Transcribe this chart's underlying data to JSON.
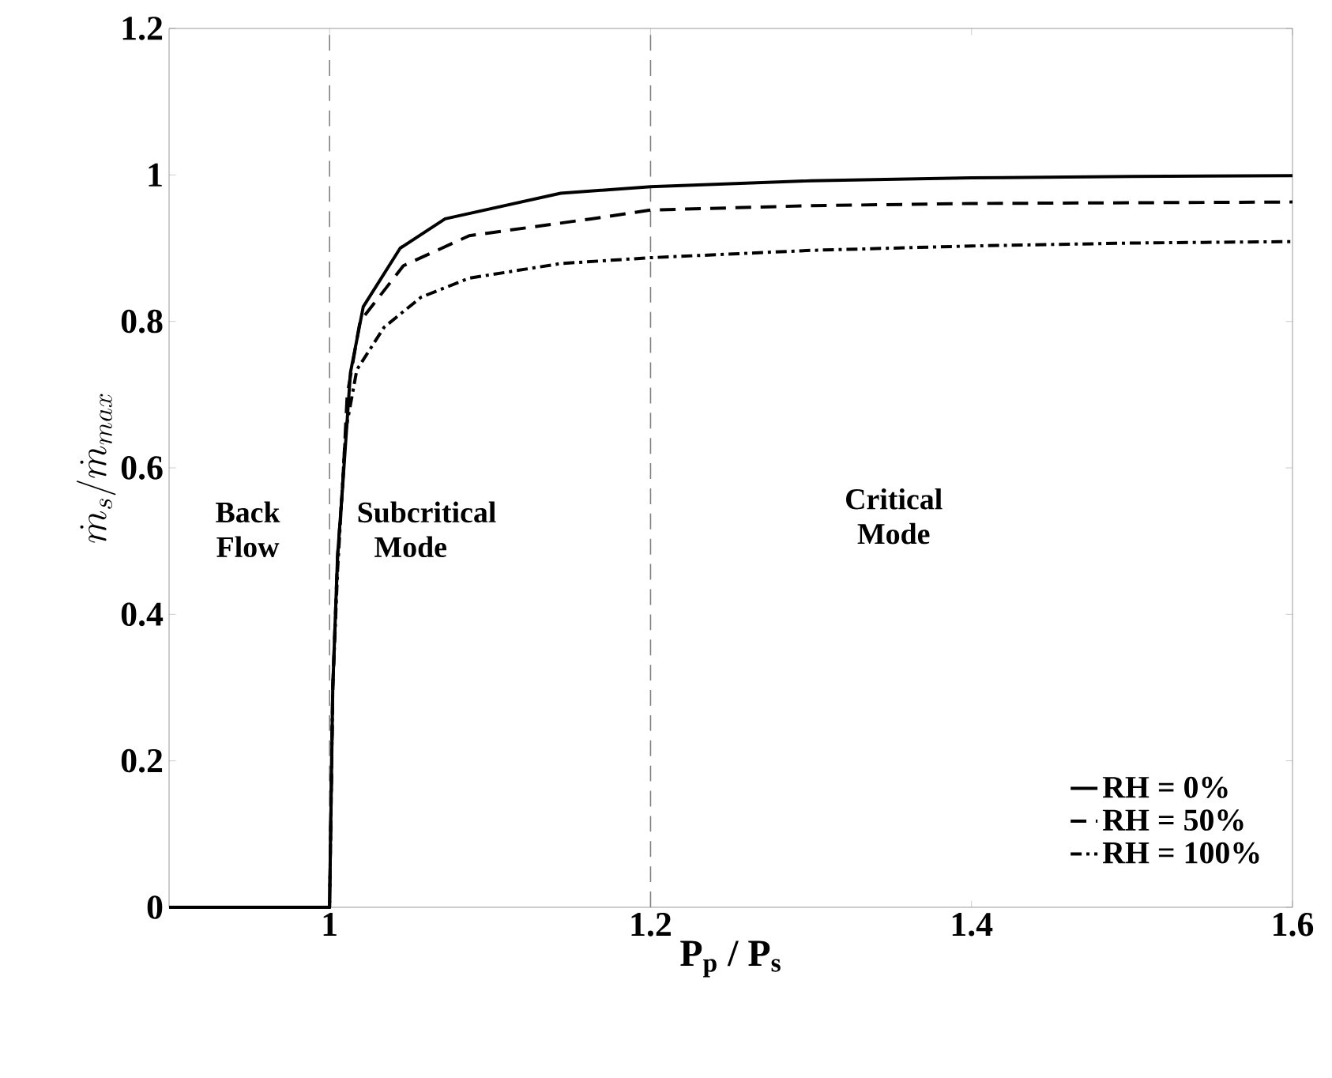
{
  "chart_data": {
    "type": "line",
    "xlabel": "P$_{p}$ / P$_{s}$",
    "ylabel": "\\dot{m}_s/\\dot{m}_{max}",
    "xlim": [
      0.9,
      1.6
    ],
    "ylim": [
      0,
      1.2
    ],
    "xticks": [
      1,
      1.2,
      1.4,
      1.6
    ],
    "yticks": [
      0,
      0.2,
      0.4,
      0.6,
      0.8,
      1,
      1.2
    ],
    "legend": "bottom right",
    "grid": false,
    "marker": "none",
    "series": [
      {
        "name": "RH = 0%",
        "color": "#000000",
        "line_style": "solid",
        "x": [
          0.9,
          1.0,
          1.002,
          1.005,
          1.008,
          1.013,
          1.021,
          1.044,
          1.072,
          1.144,
          1.2,
          1.3,
          1.4,
          1.5,
          1.6
        ],
        "values": [
          0,
          0,
          0.3,
          0.48,
          0.57,
          0.73,
          0.82,
          0.9,
          0.94,
          0.975,
          0.984,
          0.992,
          0.996,
          0.998,
          0.999
        ]
      },
      {
        "name": "RH = 50%",
        "color": "#000000",
        "line_style": "dashed",
        "x": [
          0.9,
          1.0,
          1.002,
          1.005,
          1.008,
          1.011,
          1.019,
          1.046,
          1.087,
          1.163,
          1.2,
          1.3,
          1.4,
          1.5,
          1.6
        ],
        "values": [
          0,
          0,
          0.3,
          0.48,
          0.57,
          0.7,
          0.8,
          0.876,
          0.917,
          0.94,
          0.952,
          0.958,
          0.961,
          0.962,
          0.963
        ]
      },
      {
        "name": "RH = 100%",
        "color": "#000000",
        "line_style": "dashdotted",
        "x": [
          0.9,
          1.0,
          1.002,
          1.005,
          1.01,
          1.017,
          1.034,
          1.057,
          1.087,
          1.144,
          1.2,
          1.3,
          1.4,
          1.5,
          1.6
        ],
        "values": [
          0,
          0,
          0.3,
          0.46,
          0.65,
          0.734,
          0.792,
          0.833,
          0.859,
          0.879,
          0.887,
          0.897,
          0.903,
          0.907,
          0.909
        ]
      }
    ],
    "ref_lines": [
      {
        "axis": "x",
        "value": 1,
        "color": "#808080",
        "line_style": "dashed"
      },
      {
        "axis": "x",
        "value": 1.2,
        "color": "#808080",
        "line_style": "dashed"
      }
    ],
    "annotations": [
      "Back Flow",
      "Subcritical Mode",
      "Critical Mode"
    ]
  }
}
